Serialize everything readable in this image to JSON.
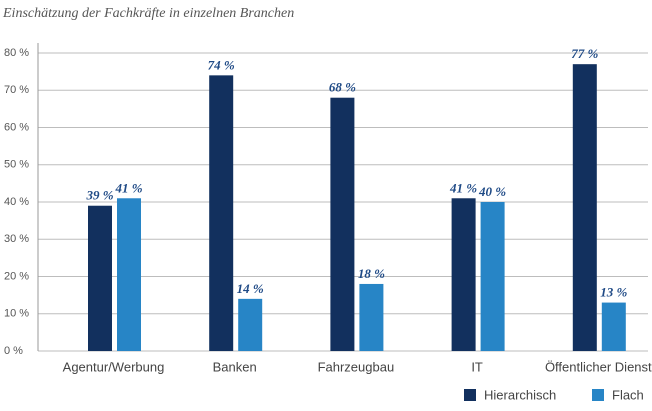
{
  "chart_data": {
    "type": "bar",
    "title": "Einschätzung der Fachkräfte in einzelnen Branchen",
    "categories": [
      "Agentur/Werbung",
      "Banken",
      "Fahrzeugbau",
      "IT",
      "Öffentlicher Dienst"
    ],
    "series": [
      {
        "name": "Hierarchisch",
        "color": "#12305e",
        "values": [
          39,
          74,
          68,
          41,
          77
        ],
        "value_labels": [
          "39 %",
          "74 %",
          "68 %",
          "41 %",
          "77 %"
        ]
      },
      {
        "name": "Flach",
        "color": "#2785c6",
        "values": [
          41,
          14,
          18,
          40,
          13
        ],
        "value_labels": [
          "41 %",
          "14 %",
          "18 %",
          "40 %",
          "13 %"
        ]
      }
    ],
    "ylim": [
      0,
      80
    ],
    "yticks": [
      {
        "value": 0,
        "label": "0 %"
      },
      {
        "value": 10,
        "label": "10 %"
      },
      {
        "value": 20,
        "label": "20 %"
      },
      {
        "value": 30,
        "label": "30 %"
      },
      {
        "value": 40,
        "label": "40 %"
      },
      {
        "value": 50,
        "label": "50 %"
      },
      {
        "value": 60,
        "label": "60 %"
      },
      {
        "value": 70,
        "label": "70 %"
      },
      {
        "value": 80,
        "label": "80 %"
      }
    ],
    "grid": true,
    "legend": "bottom-right"
  }
}
